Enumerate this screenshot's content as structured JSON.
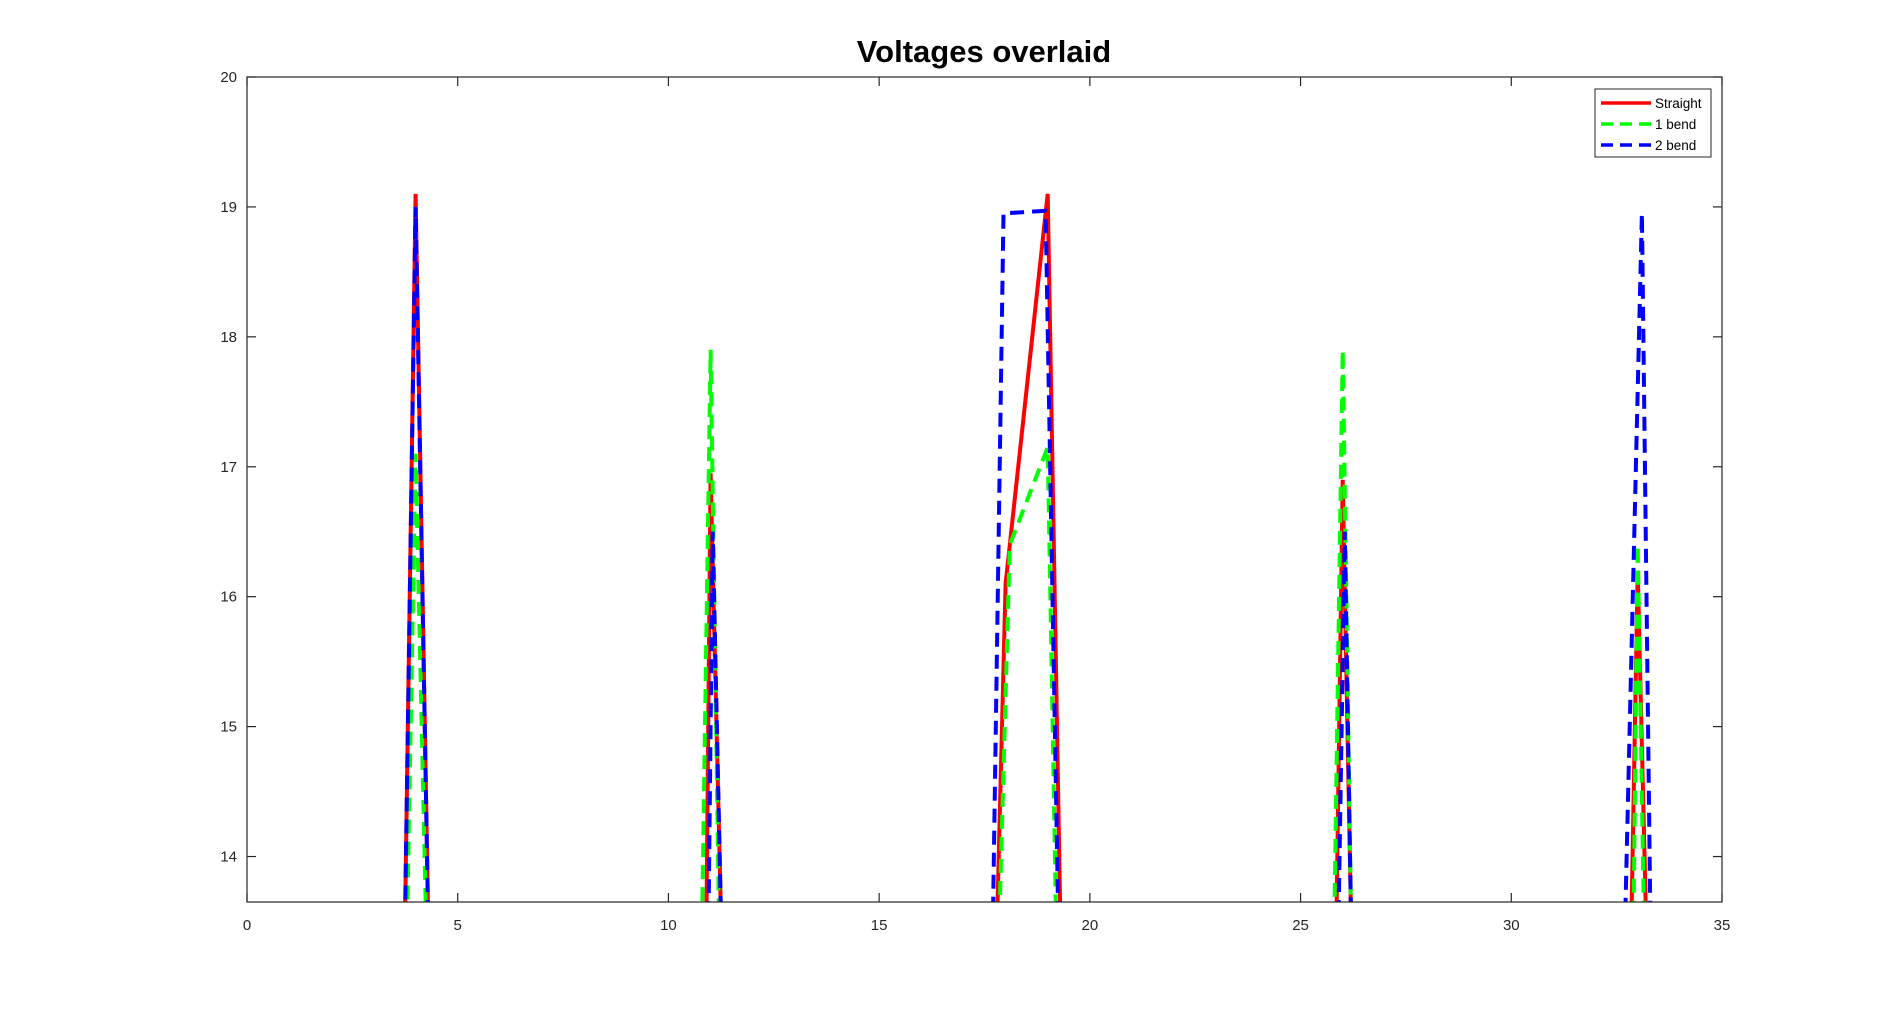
{
  "chart_data": {
    "type": "line",
    "title": "Voltages overlaid",
    "xlabel": "",
    "ylabel": "",
    "xlim": [
      0,
      35
    ],
    "ylim": [
      13.65,
      20
    ],
    "xticks": [
      0,
      5,
      10,
      15,
      20,
      25,
      30,
      35
    ],
    "yticks": [
      14,
      15,
      16,
      17,
      18,
      19,
      20
    ],
    "xtick_labels": [
      "0",
      "5",
      "10",
      "15",
      "20",
      "25",
      "30",
      "35"
    ],
    "ytick_labels": [
      "14",
      "15",
      "16",
      "17",
      "18",
      "19",
      "20"
    ],
    "grid": false,
    "legend_position": "top-right",
    "series": [
      {
        "name": "Straight",
        "color": "#ff0000",
        "dash": "solid",
        "x": [
          3.75,
          4,
          4.3,
          10.9,
          11,
          11.25,
          17.8,
          18,
          19,
          19.3,
          25.85,
          26,
          26.2,
          32.85,
          33,
          33.2
        ],
        "y": [
          13.5,
          19.1,
          13.5,
          13.5,
          16.95,
          13.5,
          13.5,
          16.1,
          19.1,
          13.5,
          13.5,
          16.9,
          13.5,
          13.5,
          16.2,
          13.5
        ]
      },
      {
        "name": "1 bend",
        "color": "#00ff00",
        "dash": "dashed",
        "x": [
          3.8,
          4,
          4.25,
          10.8,
          11,
          11.2,
          17.85,
          18.1,
          19,
          19.2,
          25.8,
          26,
          26.2,
          32.9,
          33,
          33.15
        ],
        "y": [
          13.5,
          17.1,
          13.5,
          13.5,
          17.9,
          13.5,
          13.5,
          16.4,
          17.15,
          13.5,
          13.5,
          17.9,
          13.5,
          13.5,
          16.4,
          13.5
        ]
      },
      {
        "name": "2 bend",
        "color": "#0000ff",
        "dash": "dashed",
        "x": [
          3.75,
          4,
          4.3,
          10.95,
          11.05,
          11.25,
          17.7,
          17.95,
          18.95,
          19.25,
          25.9,
          26.05,
          26.2,
          32.7,
          33.1,
          33.3
        ],
        "y": [
          13.5,
          19,
          13.5,
          13.5,
          16.5,
          13.5,
          13.5,
          18.95,
          18.97,
          13.5,
          13.5,
          16.5,
          13.5,
          13.5,
          18.95,
          13.5
        ]
      }
    ]
  }
}
